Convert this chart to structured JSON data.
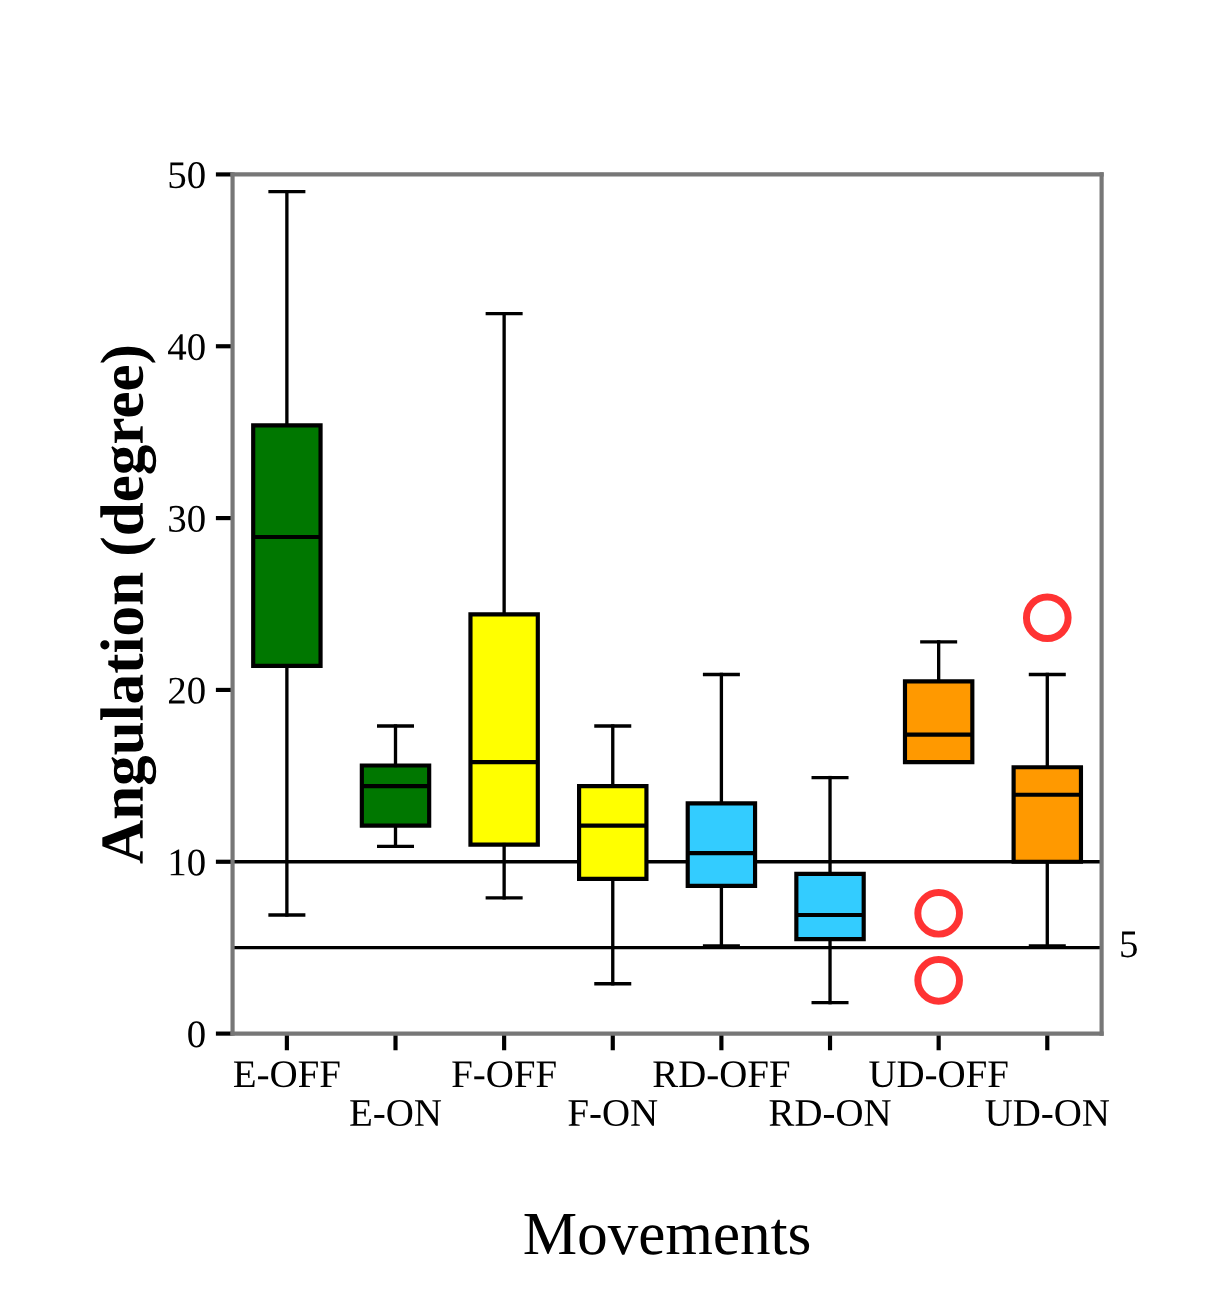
{
  "chart_data": {
    "type": "box",
    "categories": [
      "E-OFF",
      "E-ON",
      "F-OFF",
      "F-ON",
      "RD-OFF",
      "RD-ON",
      "UD-OFF",
      "UD-ON"
    ],
    "colors": [
      "#007700",
      "#007700",
      "#ffff00",
      "#ffff00",
      "#33ccff",
      "#33ccff",
      "#ff9900",
      "#ff9900"
    ],
    "boxes": [
      {
        "low": 6.9,
        "q1": 21.4,
        "median": 28.9,
        "q3": 35.4,
        "high": 49.0
      },
      {
        "low": 10.9,
        "q1": 12.1,
        "median": 14.4,
        "q3": 15.6,
        "high": 17.9
      },
      {
        "low": 7.9,
        "q1": 11.0,
        "median": 15.8,
        "q3": 24.4,
        "high": 41.9
      },
      {
        "low": 2.9,
        "q1": 9.0,
        "median": 12.1,
        "q3": 14.4,
        "high": 17.9
      },
      {
        "low": 5.1,
        "q1": 8.6,
        "median": 10.5,
        "q3": 13.4,
        "high": 20.9
      },
      {
        "low": 1.8,
        "q1": 5.5,
        "median": 6.9,
        "q3": 9.3,
        "high": 14.9
      },
      {
        "low": 15.8,
        "q1": 15.8,
        "median": 17.4,
        "q3": 20.5,
        "high": 22.8,
        "outliers": [
          7.0,
          3.1
        ]
      },
      {
        "low": 5.1,
        "q1": 10.0,
        "median": 13.9,
        "q3": 15.5,
        "high": 20.9,
        "outliers": [
          24.2
        ]
      }
    ],
    "xlabel": "Movements",
    "ylabel": "Angulation (degree)",
    "ylim": [
      0,
      50
    ],
    "yticks": [
      0,
      10,
      20,
      30,
      40,
      50
    ],
    "ref_lines": [
      {
        "axis": "y",
        "value": 10,
        "label": null,
        "color": "#000000"
      },
      {
        "axis": "y",
        "value": 5,
        "label": "5",
        "color": "#000000"
      }
    ],
    "grid": false,
    "legend": false
  }
}
